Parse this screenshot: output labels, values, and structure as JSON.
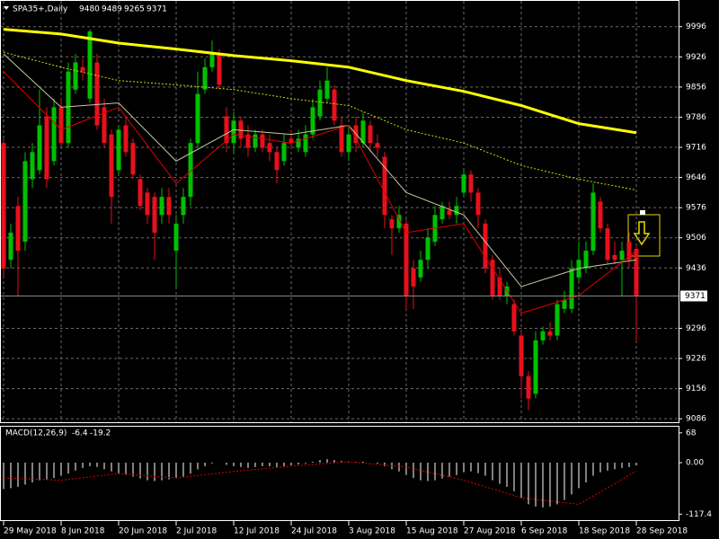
{
  "chart_data": {
    "type": "candlestick",
    "title": "SPA35+,Daily",
    "categories": [
      "29 May 2018",
      null,
      null,
      null,
      null,
      null,
      null,
      null,
      "8 Jun 2018",
      null,
      null,
      null,
      null,
      null,
      null,
      null,
      "20 Jun 2018",
      null,
      null,
      null,
      null,
      null,
      null,
      null,
      "2 Jul 2018",
      null,
      null,
      null,
      null,
      null,
      null,
      null,
      "12 Jul 2018",
      null,
      null,
      null,
      null,
      null,
      null,
      null,
      "24 Jul 2018",
      null,
      null,
      null,
      null,
      null,
      null,
      null,
      "3 Aug 2018",
      null,
      null,
      null,
      null,
      null,
      null,
      null,
      "15 Aug 2018",
      null,
      null,
      null,
      null,
      null,
      null,
      null,
      "27 Aug 2018",
      null,
      null,
      null,
      null,
      null,
      null,
      null,
      "6 Sep 2018",
      null,
      null,
      null,
      null,
      null,
      null,
      null,
      "18 Sep 2018",
      null,
      null,
      null,
      null,
      null,
      null,
      null,
      "28 Sep 2018"
    ],
    "open": [
      9726,
      9455,
      9580,
      9497,
      9642,
      9663,
      9788,
      9684,
      9809,
      9726,
      9850,
      9902,
      9829,
      9913,
      9809,
      9746,
      9663,
      9767,
      9726,
      9642,
      9611,
      9601,
      9559,
      9601,
      9476,
      9559,
      9601,
      9726,
      9850,
      9902,
      9933,
      9788,
      9726,
      9778,
      9746,
      9715,
      9746,
      9726,
      9705,
      9684,
      9736,
      9715,
      9705,
      9746,
      9788,
      9829,
      9850,
      9767,
      9705,
      9767,
      9726,
      9767,
      9726,
      9694,
      9549,
      9528,
      9539,
      9435,
      9414,
      9455,
      9497,
      9549,
      9570,
      9559,
      9611,
      9653,
      9611,
      9539,
      9455,
      9414,
      9372,
      9352,
      9279,
      9185,
      9144,
      9268,
      9289,
      9279,
      9341,
      9341,
      9414,
      9435,
      9476,
      9590,
      9528,
      9466,
      9455,
      9497,
      9480
    ],
    "high": [
      9736,
      9539,
      9601,
      9705,
      9726,
      9850,
      9809,
      9829,
      9829,
      9913,
      9933,
      9923,
      9990,
      9933,
      9829,
      9757,
      9767,
      9788,
      9736,
      9653,
      9622,
      9611,
      9622,
      9622,
      9559,
      9622,
      9736,
      9892,
      9923,
      9964,
      9944,
      9809,
      9798,
      9788,
      9767,
      9757,
      9757,
      9746,
      9715,
      9746,
      9757,
      9757,
      9767,
      9829,
      9871,
      9902,
      9861,
      9788,
      9767,
      9788,
      9798,
      9778,
      9746,
      9705,
      9559,
      9580,
      9549,
      9455,
      9476,
      9528,
      9580,
      9590,
      9590,
      9601,
      9663,
      9663,
      9622,
      9549,
      9466,
      9435,
      9404,
      9362,
      9289,
      9196,
      9289,
      9300,
      9310,
      9362,
      9383,
      9455,
      9497,
      9497,
      9632,
      9601,
      9539,
      9497,
      9497,
      9518,
      9489
    ],
    "low": [
      9414,
      9435,
      9372,
      9476,
      9622,
      9653,
      9622,
      9674,
      9715,
      9715,
      9840,
      9871,
      9819,
      9757,
      9715,
      9539,
      9653,
      9694,
      9642,
      9570,
      9539,
      9455,
      9539,
      9539,
      9393,
      9539,
      9580,
      9715,
      9840,
      9892,
      9850,
      9705,
      9705,
      9715,
      9694,
      9705,
      9705,
      9684,
      9632,
      9674,
      9715,
      9705,
      9694,
      9736,
      9778,
      9819,
      9767,
      9694,
      9684,
      9705,
      9715,
      9705,
      9694,
      9528,
      9466,
      9518,
      9341,
      9341,
      9404,
      9435,
      9487,
      9539,
      9549,
      9539,
      9601,
      9590,
      9528,
      9424,
      9362,
      9362,
      9352,
      9279,
      9133,
      9106,
      9133,
      9258,
      9268,
      9268,
      9331,
      9331,
      9404,
      9424,
      9466,
      9518,
      9445,
      9445,
      9372,
      9435,
      9265
    ],
    "close": [
      9435,
      9518,
      9476,
      9684,
      9705,
      9767,
      9642,
      9809,
      9726,
      9892,
      9913,
      9892,
      9985,
      9767,
      9726,
      9601,
      9757,
      9705,
      9653,
      9580,
      9559,
      9518,
      9601,
      9559,
      9539,
      9601,
      9726,
      9840,
      9902,
      9933,
      9861,
      9726,
      9778,
      9736,
      9715,
      9746,
      9715,
      9705,
      9663,
      9726,
      9726,
      9736,
      9746,
      9809,
      9850,
      9871,
      9778,
      9705,
      9746,
      9726,
      9778,
      9726,
      9715,
      9559,
      9528,
      9559,
      9372,
      9393,
      9455,
      9507,
      9559,
      9580,
      9559,
      9580,
      9653,
      9611,
      9559,
      9435,
      9372,
      9372,
      9393,
      9289,
      9185,
      9133,
      9268,
      9289,
      9279,
      9352,
      9362,
      9435,
      9455,
      9476,
      9611,
      9528,
      9455,
      9455,
      9476,
      9455,
      9371
    ],
    "up_color": "#00c000",
    "down_color": "#e8101c",
    "ylim": [
      9078,
      10058
    ],
    "yticks": [
      9996,
      9926,
      9856,
      9786,
      9716,
      9646,
      9576,
      9506,
      9436,
      9296,
      9226,
      9156,
      9086
    ],
    "grid": true,
    "overlays": [
      {
        "color": "#ffff00",
        "width": 3,
        "dash": "none",
        "x": [
          0,
          8,
          16,
          24,
          32,
          40,
          48,
          56,
          64,
          72,
          80,
          88
        ],
        "values": [
          9990,
          9979,
          9958,
          9944,
          9929,
          9917,
          9902,
          9871,
          9846,
          9813,
          9771,
          9750
        ]
      },
      {
        "color": "#d8d800",
        "width": 1,
        "dash": "2 2",
        "x": [
          0,
          8,
          16,
          24,
          32,
          40,
          48,
          56,
          64,
          72,
          80,
          88
        ],
        "values": [
          9937,
          9902,
          9871,
          9861,
          9850,
          9829,
          9813,
          9757,
          9726,
          9674,
          9642,
          9617
        ]
      },
      {
        "color": "#c8c8a0",
        "width": 1,
        "dash": "none",
        "x": [
          0,
          8,
          16,
          24,
          32,
          40,
          48,
          56,
          64,
          72,
          80,
          88
        ],
        "values": [
          9933,
          9809,
          9819,
          9684,
          9757,
          9746,
          9767,
          9611,
          9559,
          9393,
          9435,
          9455
        ]
      },
      {
        "color": "#e00000",
        "width": 1,
        "dash": "none",
        "x": [
          0,
          8,
          16,
          24,
          32,
          40,
          48,
          56,
          64,
          72,
          80,
          88
        ],
        "values": [
          9892,
          9757,
          9809,
          9632,
          9746,
          9726,
          9767,
          9518,
          9539,
          9331,
          9372,
          9476
        ]
      }
    ],
    "macd": {
      "label": "MACD(12,26,9)",
      "y2lim": [
        -131,
        82
      ],
      "y2ticks": [
        68,
        {
          "value": 0,
          "label": "0.00"
        },
        -117.4
      ],
      "values": [
        -60,
        -58,
        -55,
        -50,
        -45,
        -40,
        -38,
        -35,
        -30,
        -25,
        -18,
        -12,
        -8,
        -10,
        -15,
        -20,
        -25,
        -28,
        -32,
        -36,
        -40,
        -42,
        -40,
        -38,
        -36,
        -32,
        -25,
        -15,
        -8,
        -2,
        0,
        -5,
        -8,
        -10,
        -12,
        -10,
        -8,
        -8,
        -10,
        -8,
        -6,
        -4,
        -2,
        2,
        6,
        8,
        6,
        4,
        3,
        2,
        2,
        0,
        -2,
        -8,
        -15,
        -20,
        -28,
        -35,
        -40,
        -42,
        -40,
        -36,
        -32,
        -28,
        -22,
        -20,
        -24,
        -30,
        -40,
        -48,
        -55,
        -65,
        -80,
        -95,
        -100,
        -102,
        -100,
        -95,
        -85,
        -72,
        -58,
        -45,
        -30,
        -22,
        -18,
        -15,
        -12,
        -10,
        -6.4
      ],
      "color": "#ffffff",
      "signal": {
        "color": "#e00000",
        "x": [
          0,
          8,
          16,
          24,
          32,
          40,
          48,
          56,
          64,
          72,
          80,
          88
        ],
        "values": [
          -35,
          -40,
          -25,
          -35,
          -20,
          -8,
          2,
          -10,
          -40,
          -80,
          -95,
          -19.2
        ]
      }
    }
  }
}
